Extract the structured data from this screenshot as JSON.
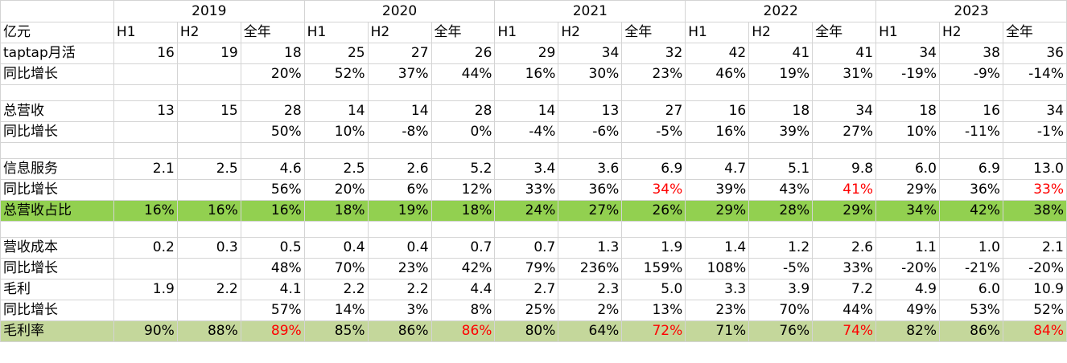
{
  "years": [
    "2019",
    "2020",
    "2021",
    "2022",
    "2023"
  ],
  "unit_label": "亿元",
  "periods": [
    "H1",
    "H2",
    "全年"
  ],
  "highlights": {
    "green": "#92d050",
    "olive": "#c4d79b",
    "red_text": "#ff0000"
  },
  "rows": [
    {
      "id": "taptap-mau",
      "label": "taptap月活",
      "values": [
        "16",
        "19",
        "18",
        "25",
        "27",
        "26",
        "29",
        "34",
        "32",
        "42",
        "41",
        "41",
        "34",
        "38",
        "36"
      ]
    },
    {
      "id": "taptap-mau-yoy",
      "label": "同比增长",
      "values": [
        "",
        "",
        "20%",
        "52%",
        "37%",
        "44%",
        "16%",
        "30%",
        "23%",
        "46%",
        "19%",
        "31%",
        "-19%",
        "-9%",
        "-14%"
      ]
    },
    {
      "id": "spacer-1",
      "label": "",
      "values": []
    },
    {
      "id": "total-revenue",
      "label": "总营收",
      "values": [
        "13",
        "15",
        "28",
        "14",
        "14",
        "28",
        "14",
        "13",
        "27",
        "16",
        "18",
        "34",
        "18",
        "16",
        "34"
      ]
    },
    {
      "id": "total-revenue-yoy",
      "label": "同比增长",
      "values": [
        "",
        "",
        "50%",
        "10%",
        "-8%",
        "0%",
        "-4%",
        "-6%",
        "-5%",
        "16%",
        "39%",
        "27%",
        "10%",
        "-11%",
        "-1%"
      ]
    },
    {
      "id": "spacer-2",
      "label": "",
      "values": []
    },
    {
      "id": "info-services",
      "label": "信息服务",
      "values": [
        "2.1",
        "2.5",
        "4.6",
        "2.5",
        "2.6",
        "5.2",
        "3.4",
        "3.6",
        "6.9",
        "4.7",
        "5.1",
        "9.8",
        "6.0",
        "6.9",
        "13.0"
      ]
    },
    {
      "id": "info-services-yoy",
      "label": "同比增长",
      "values": [
        "",
        "",
        "56%",
        "20%",
        "6%",
        "12%",
        "33%",
        "36%",
        "34%",
        "39%",
        "43%",
        "41%",
        "29%",
        "36%",
        "33%"
      ],
      "red": [
        8,
        11,
        14
      ]
    },
    {
      "id": "revenue-share",
      "label": "总营收占比",
      "highlight": "green",
      "values": [
        "16%",
        "16%",
        "16%",
        "18%",
        "19%",
        "18%",
        "24%",
        "27%",
        "26%",
        "29%",
        "28%",
        "29%",
        "34%",
        "42%",
        "38%"
      ]
    },
    {
      "id": "spacer-3",
      "label": "",
      "values": []
    },
    {
      "id": "cost-of-revenue",
      "label": "营收成本",
      "values": [
        "0.2",
        "0.3",
        "0.5",
        "0.4",
        "0.4",
        "0.7",
        "0.7",
        "1.3",
        "1.9",
        "1.4",
        "1.2",
        "2.6",
        "1.1",
        "1.0",
        "2.1"
      ]
    },
    {
      "id": "cost-of-revenue-yoy",
      "label": "同比增长",
      "values": [
        "",
        "",
        "48%",
        "70%",
        "23%",
        "42%",
        "79%",
        "236%",
        "159%",
        "108%",
        "-5%",
        "33%",
        "-20%",
        "-21%",
        "-20%"
      ]
    },
    {
      "id": "gross-profit",
      "label": "毛利",
      "values": [
        "1.9",
        "2.2",
        "4.1",
        "2.2",
        "2.2",
        "4.4",
        "2.7",
        "2.3",
        "5.0",
        "3.3",
        "3.9",
        "7.2",
        "4.9",
        "6.0",
        "10.9"
      ]
    },
    {
      "id": "gross-profit-yoy",
      "label": "同比增长",
      "values": [
        "",
        "",
        "57%",
        "14%",
        "3%",
        "8%",
        "25%",
        "2%",
        "13%",
        "23%",
        "70%",
        "44%",
        "49%",
        "53%",
        "52%"
      ]
    },
    {
      "id": "gross-margin",
      "label": "毛利率",
      "highlight": "olive",
      "values": [
        "90%",
        "88%",
        "89%",
        "85%",
        "86%",
        "86%",
        "80%",
        "64%",
        "72%",
        "71%",
        "76%",
        "74%",
        "82%",
        "86%",
        "84%"
      ],
      "red": [
        2,
        5,
        8,
        11,
        14
      ]
    }
  ]
}
